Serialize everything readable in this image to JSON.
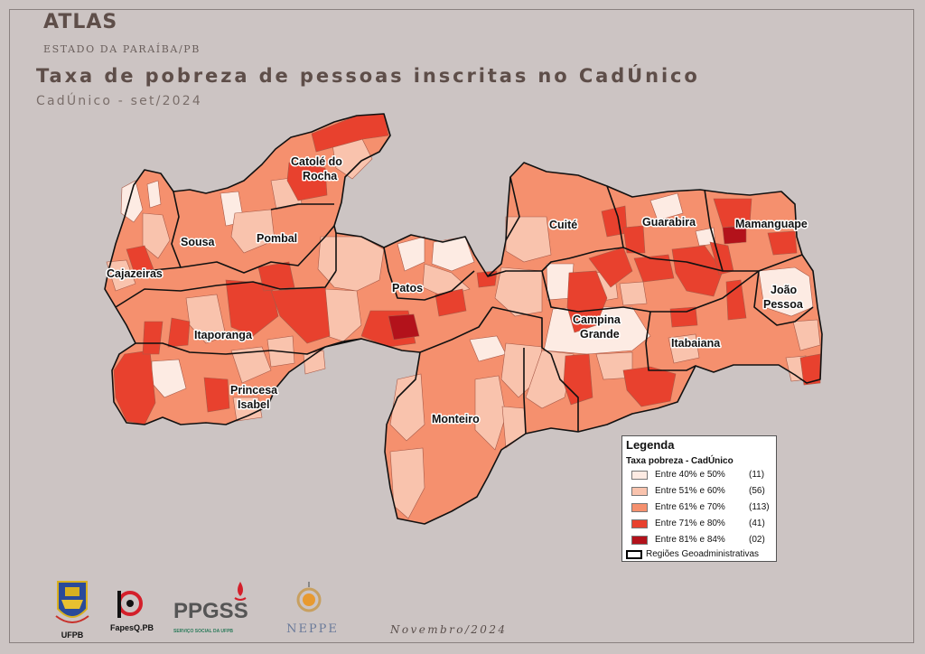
{
  "header": {
    "atlas": "ATLAS",
    "state": "ESTADO DA PARAÍBA/PB",
    "title": "Taxa de pobreza de pessoas inscritas no CadÚnico",
    "subtitle": "CadÚnico - set/2024"
  },
  "map": {
    "regions": [
      {
        "name": "Catolé do\nRocha",
        "line1": "Catolé do",
        "line2": "Rocha"
      },
      {
        "name": "Sousa"
      },
      {
        "name": "Pombal"
      },
      {
        "name": "Cajazeiras"
      },
      {
        "name": "Itaporanga"
      },
      {
        "name": "Princesa\nIsabel",
        "line1": "Princesa",
        "line2": "Isabel"
      },
      {
        "name": "Patos"
      },
      {
        "name": "Cuité"
      },
      {
        "name": "Guarabira"
      },
      {
        "name": "Mamanguape"
      },
      {
        "name": "João\nPessoa",
        "line1": "João",
        "line2": "Pessoa"
      },
      {
        "name": "Campina\nGrande",
        "line1": "Campina",
        "line2": "Grande"
      },
      {
        "name": "Itabaiana"
      },
      {
        "name": "Monteiro"
      }
    ],
    "colors": {
      "c1": "#fdebe3",
      "c2": "#f9c3ad",
      "c3": "#f5906e",
      "c4": "#e8412e",
      "c5": "#b3121b"
    }
  },
  "legend": {
    "title": "Legenda",
    "subtitle": "Taxa pobreza - CadÚnico",
    "classes": [
      {
        "label": "Entre 40% e 50%",
        "count": "(11)",
        "color": "#fdebe3"
      },
      {
        "label": "Entre 51% e 60%",
        "count": "(56)",
        "color": "#f9c3ad"
      },
      {
        "label": "Entre 61% e 70%",
        "count": "(113)",
        "color": "#f5906e"
      },
      {
        "label": "Entre 71% e 80%",
        "count": "(41)",
        "color": "#e8412e"
      },
      {
        "label": "Entre 81% e 84%",
        "count": "(02)",
        "color": "#b3121b"
      }
    ],
    "boundary_label": "Regiões Geoadministrativas"
  },
  "footer": {
    "date": "Novembro/2024",
    "logos": {
      "ufpb": "UFPB",
      "fapesq": "FapesQ.PB",
      "ppgss": "PPGSS",
      "ppgss_sub": "SERVIÇO SOCIAL DA UFPB",
      "neppe": "NEPPE"
    }
  }
}
